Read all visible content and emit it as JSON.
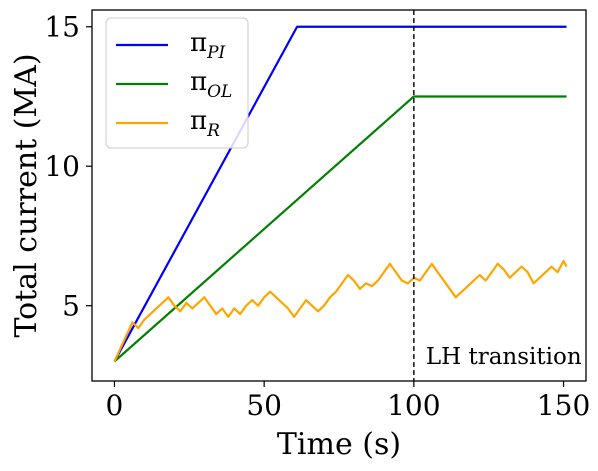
{
  "chart_data": {
    "type": "line",
    "xlabel": "Time (s)",
    "ylabel": "Total current (MA)",
    "xlim": [
      -7.5,
      157.5
    ],
    "ylim": [
      2.3,
      15.6
    ],
    "xticks": [
      0,
      50,
      100,
      150
    ],
    "yticks": [
      5,
      10,
      15
    ],
    "xtick_labels": [
      "0",
      "50",
      "100",
      "150"
    ],
    "ytick_labels": [
      "5",
      "10",
      "15"
    ],
    "grid": false,
    "legend_position": "top-left",
    "vline": {
      "x": 100,
      "style": "dashed",
      "color": "#000000"
    },
    "annotation": {
      "text": "LH transition",
      "x": 104,
      "y": 3.2
    },
    "series": [
      {
        "name": "π",
        "subscript": "PI",
        "color": "#0000ff",
        "x": [
          0,
          61,
          151
        ],
        "y": [
          3.0,
          15.0,
          15.0
        ]
      },
      {
        "name": "π",
        "subscript": "OL",
        "color": "#008000",
        "x": [
          0,
          100,
          101,
          151
        ],
        "y": [
          3.0,
          12.5,
          12.5,
          12.5
        ]
      },
      {
        "name": "π",
        "subscript": "R",
        "color": "#ffa500",
        "x": [
          0,
          6,
          8,
          10,
          12,
          14,
          16,
          18,
          20,
          22,
          24,
          26,
          28,
          30,
          32,
          34,
          36,
          38,
          40,
          42,
          44,
          46,
          48,
          50,
          52,
          54,
          56,
          58,
          60,
          62,
          64,
          66,
          68,
          70,
          72,
          74,
          76,
          78,
          80,
          82,
          84,
          86,
          88,
          90,
          92,
          94,
          96,
          98,
          100,
          102,
          104,
          106,
          108,
          110,
          112,
          114,
          116,
          118,
          120,
          122,
          124,
          126,
          128,
          130,
          132,
          134,
          136,
          138,
          140,
          142,
          144,
          146,
          148,
          150,
          151
        ],
        "y": [
          3.0,
          4.4,
          4.2,
          4.5,
          4.7,
          4.9,
          5.1,
          5.3,
          5.0,
          4.8,
          5.1,
          4.9,
          5.1,
          5.3,
          5.0,
          4.7,
          4.9,
          4.6,
          4.9,
          4.7,
          5.0,
          5.2,
          5.0,
          5.3,
          5.5,
          5.3,
          5.1,
          4.9,
          4.6,
          4.9,
          5.2,
          5.0,
          4.8,
          5.0,
          5.3,
          5.5,
          5.8,
          6.1,
          5.9,
          5.6,
          5.8,
          5.7,
          5.9,
          6.2,
          6.5,
          6.2,
          5.9,
          5.8,
          6.0,
          5.9,
          6.2,
          6.5,
          6.2,
          5.9,
          5.6,
          5.3,
          5.5,
          5.7,
          5.9,
          6.1,
          5.9,
          6.2,
          6.5,
          6.3,
          6.0,
          6.2,
          6.4,
          6.2,
          5.8,
          6.0,
          6.2,
          6.4,
          6.2,
          6.6,
          6.4
        ]
      }
    ]
  }
}
